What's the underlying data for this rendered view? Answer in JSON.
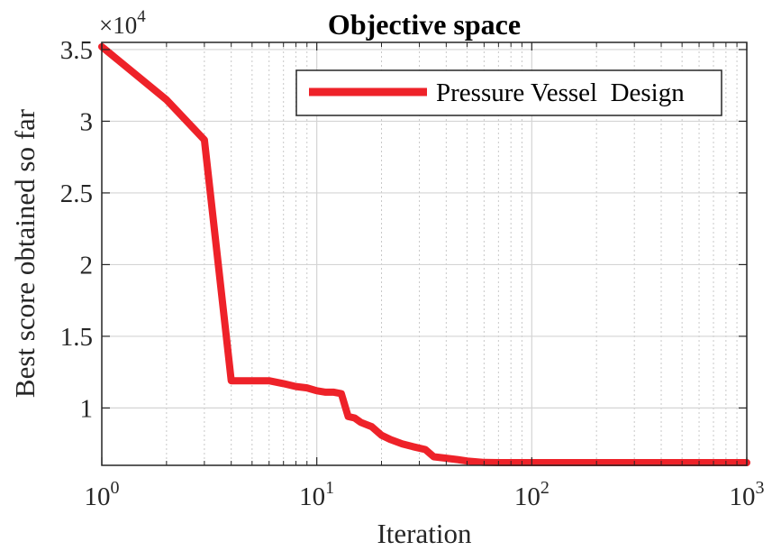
{
  "chart_data": {
    "type": "line",
    "title": "Objective space",
    "xlabel": "Iteration",
    "ylabel": "Best score obtained so far",
    "xscale": "log",
    "xlim": [
      1,
      1000
    ],
    "ylim": [
      6000,
      35500
    ],
    "y_exponent_label": "×10",
    "y_exponent": "4",
    "x_ticks": [
      {
        "value": 1,
        "base": "10",
        "exp": "0"
      },
      {
        "value": 10,
        "base": "10",
        "exp": "1"
      },
      {
        "value": 100,
        "base": "10",
        "exp": "2"
      },
      {
        "value": 1000,
        "base": "10",
        "exp": "3"
      }
    ],
    "y_ticks": [
      {
        "value": 10000,
        "label": "1"
      },
      {
        "value": 15000,
        "label": "1.5"
      },
      {
        "value": 20000,
        "label": "2"
      },
      {
        "value": 25000,
        "label": "2.5"
      },
      {
        "value": 30000,
        "label": "3"
      },
      {
        "value": 35000,
        "label": "3.5"
      }
    ],
    "grid": true,
    "legend_position": "top-right",
    "series": [
      {
        "name": "Pressure Vessel  Design",
        "color": "#ee2229",
        "x": [
          1,
          2,
          3,
          4,
          5,
          6,
          7,
          8,
          9,
          10,
          11,
          12,
          13,
          14,
          15,
          16,
          18,
          20,
          22,
          25,
          28,
          32,
          35,
          40,
          45,
          50,
          60,
          70,
          80,
          100,
          150,
          200,
          300,
          500,
          700,
          1000
        ],
        "y": [
          35200,
          31500,
          28700,
          11900,
          11900,
          11900,
          11700,
          11500,
          11400,
          11200,
          11100,
          11100,
          11000,
          9400,
          9300,
          9000,
          8700,
          8100,
          7800,
          7500,
          7300,
          7100,
          6600,
          6500,
          6400,
          6300,
          6200,
          6150,
          6100,
          6050,
          6000,
          5950,
          5950,
          5950,
          5950,
          5950
        ]
      }
    ]
  }
}
